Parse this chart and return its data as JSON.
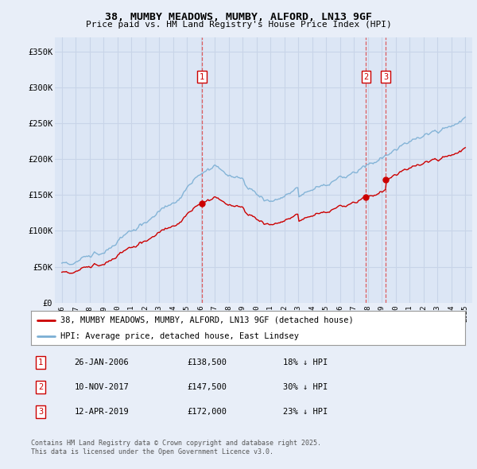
{
  "title_line1": "38, MUMBY MEADOWS, MUMBY, ALFORD, LN13 9GF",
  "title_line2": "Price paid vs. HM Land Registry's House Price Index (HPI)",
  "ylabel_ticks": [
    "£0",
    "£50K",
    "£100K",
    "£150K",
    "£200K",
    "£250K",
    "£300K",
    "£350K"
  ],
  "ytick_values": [
    0,
    50000,
    100000,
    150000,
    200000,
    250000,
    300000,
    350000
  ],
  "ylim": [
    0,
    370000
  ],
  "xlim_start": 1995.5,
  "xlim_end": 2025.5,
  "background_color": "#e8eef8",
  "plot_bg_color": "#dce6f5",
  "grid_color": "#c8d4e8",
  "hpi_color": "#7bafd4",
  "price_color": "#cc0000",
  "dashed_line_color": "#dd4444",
  "transactions": [
    {
      "num": 1,
      "date_x": 2006.07,
      "price": 138500
    },
    {
      "num": 2,
      "date_x": 2017.86,
      "price": 147500
    },
    {
      "num": 3,
      "date_x": 2019.28,
      "price": 172000
    }
  ],
  "legend_label_price": "38, MUMBY MEADOWS, MUMBY, ALFORD, LN13 9GF (detached house)",
  "legend_label_hpi": "HPI: Average price, detached house, East Lindsey",
  "footnote": "Contains HM Land Registry data © Crown copyright and database right 2025.\nThis data is licensed under the Open Government Licence v3.0.",
  "table_rows": [
    {
      "num": 1,
      "date": "26-JAN-2006",
      "price": "£138,500",
      "pct": "18% ↓ HPI"
    },
    {
      "num": 2,
      "date": "10-NOV-2017",
      "price": "£147,500",
      "pct": "30% ↓ HPI"
    },
    {
      "num": 3,
      "date": "12-APR-2019",
      "price": "£172,000",
      "pct": "23% ↓ HPI"
    }
  ]
}
